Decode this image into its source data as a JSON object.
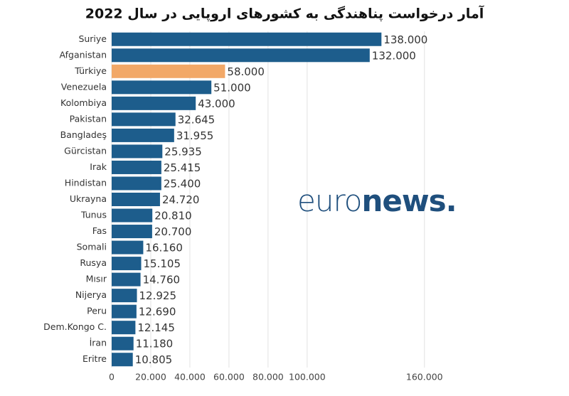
{
  "chart_data": {
    "type": "hbar",
    "title": "آمار درخواست پناهندگی به کشورهای اروپایی در سال 2022",
    "categories": [
      "Suriye",
      "Afganistan",
      "Türkiye",
      "Venezuela",
      "Kolombiya",
      "Pakistan",
      "Bangladeş",
      "Gürcistan",
      "Irak",
      "Hindistan",
      "Ukrayna",
      "Tunus",
      "Fas",
      "Somali",
      "Rusya",
      "Mısır",
      "Nijerya",
      "Peru",
      "Dem.Kongo C.",
      "İran",
      "Eritre"
    ],
    "values": [
      138000,
      132000,
      58000,
      51000,
      43000,
      32645,
      31955,
      25935,
      25415,
      25400,
      24720,
      20810,
      20700,
      16160,
      15105,
      14760,
      12925,
      12690,
      12145,
      11180,
      10805
    ],
    "value_labels": [
      "138.000",
      "132.000",
      "58.000",
      "51.000",
      "43.000",
      "32.645",
      "31.955",
      "25.935",
      "25.415",
      "25.400",
      "24.720",
      "20.810",
      "20.700",
      "16.160",
      "15.105",
      "14.760",
      "12.925",
      "12.690",
      "12.145",
      "11.180",
      "10.805"
    ],
    "colors": [
      "#1d5d8c",
      "#1d5d8c",
      "#f2a867",
      "#1d5d8c",
      "#1d5d8c",
      "#1d5d8c",
      "#1d5d8c",
      "#1d5d8c",
      "#1d5d8c",
      "#1d5d8c",
      "#1d5d8c",
      "#1d5d8c",
      "#1d5d8c",
      "#1d5d8c",
      "#1d5d8c",
      "#1d5d8c",
      "#1d5d8c",
      "#1d5d8c",
      "#1d5d8c",
      "#1d5d8c",
      "#1d5d8c"
    ],
    "xlim": [
      0,
      175000
    ],
    "xticks": [
      0,
      {
        "value": 20000,
        "label": "20.000"
      },
      {
        "value": 40000,
        "label": "40.000"
      },
      {
        "value": 60000,
        "label": "60.000"
      },
      {
        "value": 80000,
        "label": "80.000"
      },
      {
        "value": 100000,
        "label": "100.000"
      },
      {
        "value": 160000,
        "label": "160.000"
      }
    ],
    "grid": true,
    "logo": {
      "light": "euro",
      "bold": "news."
    }
  }
}
